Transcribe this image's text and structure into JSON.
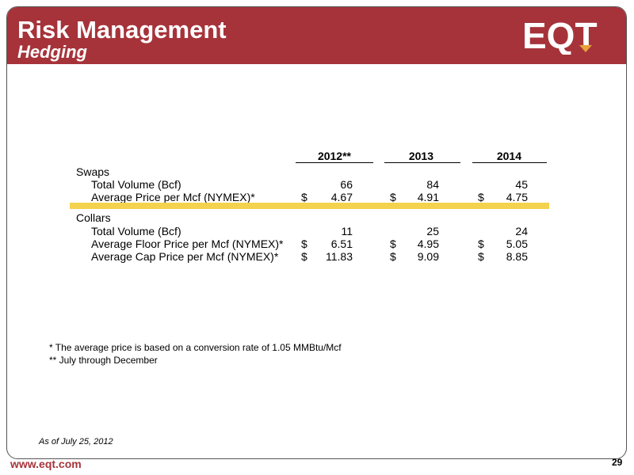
{
  "header": {
    "title": "Risk Management",
    "subtitle": "Hedging",
    "logo_text": "EQT"
  },
  "table": {
    "columns": [
      "2012**",
      "2013",
      "2014"
    ],
    "swaps": {
      "label": "Swaps",
      "rows": [
        {
          "label": "Total Volume (Bcf)",
          "cur": [
            "",
            "",
            ""
          ],
          "values": [
            "66",
            "84",
            "45"
          ]
        },
        {
          "label": "Average Price per Mcf (NYMEX)*",
          "cur": [
            "$",
            "$",
            "$"
          ],
          "values": [
            "4.67",
            "4.91",
            "4.75"
          ]
        }
      ]
    },
    "collars": {
      "label": "Collars",
      "rows": [
        {
          "label": "Total Volume (Bcf)",
          "cur": [
            "",
            "",
            ""
          ],
          "values": [
            "11",
            "25",
            "24"
          ]
        },
        {
          "label": "Average Floor Price per Mcf (NYMEX)*",
          "cur": [
            "$",
            "$",
            "$"
          ],
          "values": [
            "6.51",
            "4.95",
            "5.05"
          ]
        },
        {
          "label": "Average Cap Price per Mcf (NYMEX)*",
          "cur": [
            "$",
            "$",
            "$"
          ],
          "values": [
            "11.83",
            "9.09",
            "8.85"
          ]
        }
      ]
    }
  },
  "footnotes": [
    "* The average price is based on a conversion rate of 1.05 MMBtu/Mcf",
    "** July through December"
  ],
  "as_of": "As of July 25, 2012",
  "footer": {
    "url": "www.eqt.com",
    "page_number": "29"
  },
  "colors": {
    "brand_red": "#a6333a",
    "highlight_yellow": "#f4d24e"
  }
}
